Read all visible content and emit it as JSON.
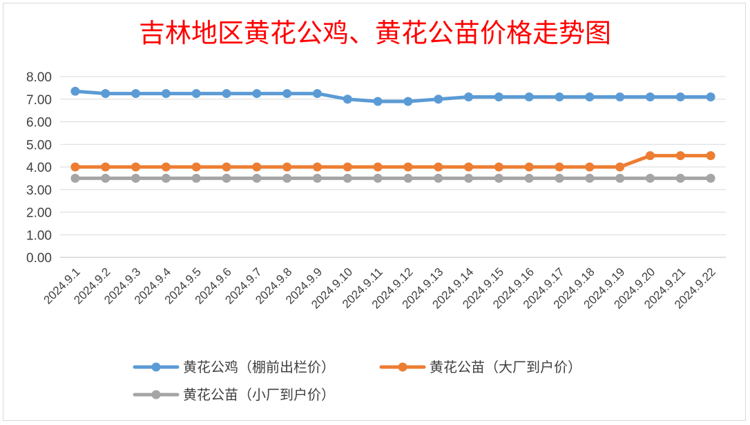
{
  "chart_data": {
    "type": "line",
    "title": "吉林地区黄花公鸡、黄花公苗价格走势图",
    "xlabel": "",
    "ylabel": "",
    "ylim": [
      0,
      8
    ],
    "ytick_step": 1,
    "ytick_format": "0.00",
    "grid": true,
    "legend_position": "bottom",
    "categories": [
      "2024.9.1",
      "2024.9.2",
      "2024.9.3",
      "2024.9.4",
      "2024.9.5",
      "2024.9.6",
      "2024.9.7",
      "2024.9.8",
      "2024.9.9",
      "2024.9.10",
      "2024.9.11",
      "2024.9.12",
      "2024.9.13",
      "2024.9.14",
      "2024.9.15",
      "2024.9.16",
      "2024.9.17",
      "2024.9.18",
      "2024.9.19",
      "2024.9.20",
      "2024.9.21",
      "2024.9.22"
    ],
    "series": [
      {
        "name": "黄花公鸡（棚前出栏价）",
        "color": "#5b9bd5",
        "values": [
          7.35,
          7.25,
          7.25,
          7.25,
          7.25,
          7.25,
          7.25,
          7.25,
          7.25,
          7.0,
          6.9,
          6.9,
          7.0,
          7.1,
          7.1,
          7.1,
          7.1,
          7.1,
          7.1,
          7.1,
          7.1,
          7.1
        ]
      },
      {
        "name": "黄花公苗（大厂到户价）",
        "color": "#ed7d31",
        "values": [
          4.0,
          4.0,
          4.0,
          4.0,
          4.0,
          4.0,
          4.0,
          4.0,
          4.0,
          4.0,
          4.0,
          4.0,
          4.0,
          4.0,
          4.0,
          4.0,
          4.0,
          4.0,
          4.0,
          4.5,
          4.5,
          4.5
        ]
      },
      {
        "name": "黄花公苗（小厂到户价）",
        "color": "#a5a5a5",
        "values": [
          3.5,
          3.5,
          3.5,
          3.5,
          3.5,
          3.5,
          3.5,
          3.5,
          3.5,
          3.5,
          3.5,
          3.5,
          3.5,
          3.5,
          3.5,
          3.5,
          3.5,
          3.5,
          3.5,
          3.5,
          3.5,
          3.5
        ]
      }
    ]
  }
}
